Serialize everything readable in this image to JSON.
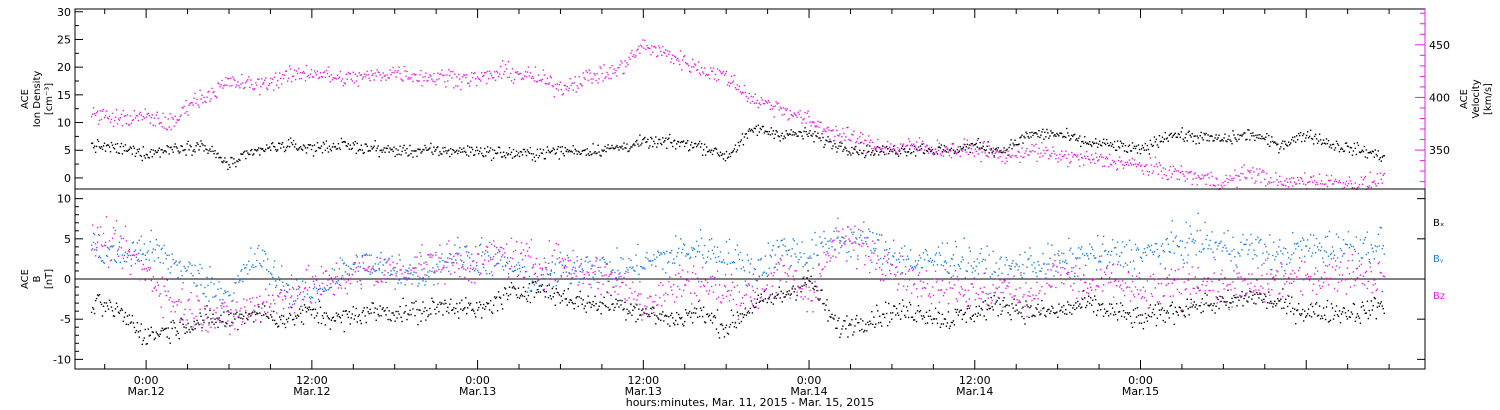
{
  "chart_data": [
    {
      "type": "scatter",
      "panel": "top",
      "ylabel_left": [
        "ACE",
        "Ion Density",
        "[cm⁻³]"
      ],
      "ylabel_right": [
        "ACE",
        "Velocity",
        "[km/s]"
      ],
      "y_left_lim": [
        -2,
        30.5
      ],
      "y_left_ticks": [
        0,
        5,
        10,
        15,
        20,
        25,
        30
      ],
      "y_right_lim": [
        313,
        484
      ],
      "y_right_ticks": [
        350,
        400,
        450
      ],
      "y_right_label_color": "#e61fe6",
      "grid": false,
      "series": [
        {
          "name": "",
          "axis": "left",
          "color": "#000000",
          "noise": 0.8,
          "points": [
            [
              -4,
              6
            ],
            [
              -1,
              5
            ],
            [
              0,
              4.5
            ],
            [
              2,
              5.5
            ],
            [
              4,
              6
            ],
            [
              6,
              2.5
            ],
            [
              8,
              5
            ],
            [
              10,
              6
            ],
            [
              12,
              5.5
            ],
            [
              14,
              6
            ],
            [
              16,
              5.5
            ],
            [
              18,
              5
            ],
            [
              20,
              5
            ],
            [
              22,
              5
            ],
            [
              24,
              5
            ],
            [
              26,
              4.5
            ],
            [
              28,
              4.5
            ],
            [
              30,
              5
            ],
            [
              32,
              5
            ],
            [
              34,
              5.5
            ],
            [
              36,
              6.5
            ],
            [
              38,
              6.5
            ],
            [
              40,
              6
            ],
            [
              42,
              4
            ],
            [
              44,
              9
            ],
            [
              46,
              8
            ],
            [
              48,
              8
            ],
            [
              50,
              6
            ],
            [
              52,
              5
            ],
            [
              54,
              5
            ],
            [
              56,
              5.5
            ],
            [
              58,
              5
            ],
            [
              60,
              6
            ],
            [
              62,
              5
            ],
            [
              64,
              8
            ],
            [
              66,
              8
            ],
            [
              68,
              6.5
            ],
            [
              70,
              6
            ],
            [
              72,
              5
            ],
            [
              74,
              8
            ],
            [
              76,
              7.5
            ],
            [
              78,
              7
            ],
            [
              80,
              8
            ],
            [
              82,
              6
            ],
            [
              84,
              8
            ],
            [
              86,
              6
            ],
            [
              88,
              5
            ],
            [
              89.6,
              4
            ]
          ]
        },
        {
          "name": "",
          "axis": "right",
          "color": "#e61fe6",
          "noise": 6,
          "points": [
            [
              -4,
              385
            ],
            [
              -2,
              380
            ],
            [
              0,
              382
            ],
            [
              2,
              375
            ],
            [
              3,
              395
            ],
            [
              4,
              400
            ],
            [
              6,
              415
            ],
            [
              8,
              412
            ],
            [
              10,
              420
            ],
            [
              12,
              425
            ],
            [
              14,
              418
            ],
            [
              16,
              420
            ],
            [
              18,
              425
            ],
            [
              20,
              420
            ],
            [
              22,
              420
            ],
            [
              24,
              418
            ],
            [
              26,
              425
            ],
            [
              28,
              420
            ],
            [
              30,
              410
            ],
            [
              32,
              420
            ],
            [
              34,
              425
            ],
            [
              36,
              450
            ],
            [
              38,
              440
            ],
            [
              40,
              428
            ],
            [
              42,
              420
            ],
            [
              44,
              398
            ],
            [
              46,
              390
            ],
            [
              48,
              378
            ],
            [
              50,
              366
            ],
            [
              52,
              358
            ],
            [
              54,
              352
            ],
            [
              56,
              355
            ],
            [
              58,
              350
            ],
            [
              60,
              352
            ],
            [
              62,
              345
            ],
            [
              64,
              350
            ],
            [
              66,
              345
            ],
            [
              68,
              342
            ],
            [
              70,
              340
            ],
            [
              72,
              335
            ],
            [
              74,
              330
            ],
            [
              76,
              325
            ],
            [
              78,
              320
            ],
            [
              80,
              330
            ],
            [
              82,
              318
            ],
            [
              84,
              322
            ],
            [
              86,
              320
            ],
            [
              88,
              318
            ],
            [
              89.6,
              322
            ]
          ]
        }
      ]
    },
    {
      "type": "scatter",
      "panel": "bottom",
      "ylabel_left": [
        "ACE",
        "B",
        "[nT]"
      ],
      "y_lim": [
        -11.2,
        11.2
      ],
      "y_ticks": [
        -10,
        -5,
        0,
        5,
        10
      ],
      "zero_line": true,
      "grid": false,
      "series": [
        {
          "name": "Bₓ",
          "color": "#000000",
          "noise": 1.0,
          "points": [
            [
              -4,
              -3
            ],
            [
              -2,
              -4
            ],
            [
              0,
              -7
            ],
            [
              2,
              -6
            ],
            [
              4,
              -5
            ],
            [
              6,
              -5
            ],
            [
              8,
              -4
            ],
            [
              10,
              -5
            ],
            [
              12,
              -4
            ],
            [
              14,
              -5
            ],
            [
              16,
              -4
            ],
            [
              18,
              -4
            ],
            [
              20,
              -4
            ],
            [
              22,
              -3
            ],
            [
              24,
              -4
            ],
            [
              26,
              -2
            ],
            [
              28,
              -1
            ],
            [
              30,
              -2
            ],
            [
              32,
              -3
            ],
            [
              34,
              -3
            ],
            [
              36,
              -4
            ],
            [
              38,
              -5
            ],
            [
              40,
              -4
            ],
            [
              42,
              -6
            ],
            [
              44,
              -3
            ],
            [
              46,
              -2
            ],
            [
              48,
              0
            ],
            [
              50,
              -6
            ],
            [
              52,
              -5
            ],
            [
              54,
              -4
            ],
            [
              56,
              -4
            ],
            [
              58,
              -5
            ],
            [
              60,
              -4
            ],
            [
              62,
              -3
            ],
            [
              64,
              -4
            ],
            [
              66,
              -4
            ],
            [
              68,
              -3
            ],
            [
              70,
              -4
            ],
            [
              72,
              -5
            ],
            [
              74,
              -4
            ],
            [
              76,
              -3
            ],
            [
              78,
              -3
            ],
            [
              80,
              -2
            ],
            [
              82,
              -3
            ],
            [
              84,
              -4
            ],
            [
              86,
              -4
            ],
            [
              88,
              -4
            ],
            [
              89.6,
              -3
            ]
          ]
        },
        {
          "name": "Bᵧ",
          "color": "#1f82dc",
          "noise": 1.6,
          "points": [
            [
              -4,
              4
            ],
            [
              -2,
              3
            ],
            [
              0,
              4
            ],
            [
              2,
              2
            ],
            [
              4,
              0
            ],
            [
              6,
              -2
            ],
            [
              8,
              3
            ],
            [
              10,
              -1
            ],
            [
              12,
              -2
            ],
            [
              14,
              1
            ],
            [
              16,
              2
            ],
            [
              18,
              1
            ],
            [
              20,
              1
            ],
            [
              22,
              3
            ],
            [
              24,
              3
            ],
            [
              26,
              2
            ],
            [
              28,
              0
            ],
            [
              30,
              1
            ],
            [
              32,
              2
            ],
            [
              34,
              1
            ],
            [
              36,
              2
            ],
            [
              38,
              3
            ],
            [
              40,
              4
            ],
            [
              42,
              3
            ],
            [
              44,
              1
            ],
            [
              46,
              4
            ],
            [
              48,
              3
            ],
            [
              50,
              5
            ],
            [
              52,
              5
            ],
            [
              54,
              3
            ],
            [
              56,
              2
            ],
            [
              58,
              3
            ],
            [
              60,
              2
            ],
            [
              62,
              1
            ],
            [
              64,
              2
            ],
            [
              66,
              2
            ],
            [
              68,
              3
            ],
            [
              70,
              3
            ],
            [
              72,
              3
            ],
            [
              74,
              4
            ],
            [
              76,
              5
            ],
            [
              78,
              4
            ],
            [
              80,
              4
            ],
            [
              82,
              3
            ],
            [
              84,
              4
            ],
            [
              86,
              4
            ],
            [
              88,
              4
            ],
            [
              89.6,
              4.5
            ]
          ]
        },
        {
          "name": "Bz",
          "color": "#e61fe6",
          "noise": 1.8,
          "points": [
            [
              -4,
              5
            ],
            [
              -2,
              4
            ],
            [
              0,
              1
            ],
            [
              2,
              -3
            ],
            [
              4,
              -4
            ],
            [
              6,
              -5
            ],
            [
              8,
              -3
            ],
            [
              10,
              -2
            ],
            [
              12,
              -1
            ],
            [
              14,
              0
            ],
            [
              16,
              1
            ],
            [
              18,
              1
            ],
            [
              20,
              2
            ],
            [
              22,
              2
            ],
            [
              24,
              2
            ],
            [
              26,
              3
            ],
            [
              28,
              2
            ],
            [
              30,
              2
            ],
            [
              32,
              1
            ],
            [
              34,
              0
            ],
            [
              36,
              -3
            ],
            [
              38,
              -1
            ],
            [
              40,
              0
            ],
            [
              42,
              -2
            ],
            [
              44,
              -2
            ],
            [
              46,
              1
            ],
            [
              48,
              -2
            ],
            [
              50,
              5
            ],
            [
              52,
              4
            ],
            [
              54,
              2
            ],
            [
              56,
              -1
            ],
            [
              58,
              0
            ],
            [
              60,
              -2
            ],
            [
              62,
              -1
            ],
            [
              64,
              -2
            ],
            [
              66,
              1
            ],
            [
              68,
              -1
            ],
            [
              70,
              0
            ],
            [
              72,
              -2
            ],
            [
              74,
              -1
            ],
            [
              76,
              0
            ],
            [
              78,
              -1
            ],
            [
              80,
              -1
            ],
            [
              82,
              0
            ],
            [
              84,
              0
            ],
            [
              86,
              1
            ],
            [
              88,
              1
            ],
            [
              89.6,
              0
            ]
          ]
        }
      ]
    }
  ],
  "x_axis": {
    "lim": [
      -5.15,
      92.6
    ],
    "label": "hours:minutes, Mar. 11, 2015 - Mar. 15, 2015",
    "major_ticks": [
      {
        "x": 0,
        "time": "0:00",
        "date": "Mar.12"
      },
      {
        "x": 12,
        "time": "12:00",
        "date": "Mar.12"
      },
      {
        "x": 24,
        "time": "0:00",
        "date": "Mar.13"
      },
      {
        "x": 36,
        "time": "12:00",
        "date": "Mar.13"
      },
      {
        "x": 48,
        "time": "0:00",
        "date": "Mar.14"
      },
      {
        "x": 60,
        "time": "12:00",
        "date": "Mar.14"
      },
      {
        "x": 72,
        "time": "0:00",
        "date": "Mar.15"
      }
    ],
    "minor_step_hours": 3
  }
}
